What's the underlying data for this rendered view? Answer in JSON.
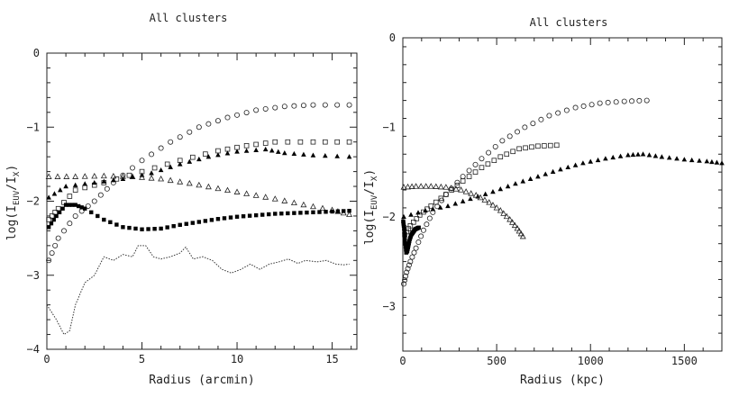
{
  "chart_data": [
    {
      "type": "scatter",
      "title": "All clusters",
      "xlabel": "Radius (arcmin)",
      "ylabel": "log(I_EUV/I_X)",
      "ylabel_main": "log(I",
      "ylabel_sub1": "EUV",
      "ylabel_mid": "/I",
      "ylabel_sub2": "X",
      "ylabel_end": ")",
      "xlim": [
        0,
        16.3
      ],
      "ylim": [
        -4,
        0
      ],
      "xticks": [
        0,
        5,
        10,
        15
      ],
      "yticks": [
        0,
        -1,
        -2,
        -3,
        -4
      ],
      "xtick_labels": [
        "0",
        "5",
        "10",
        "15"
      ],
      "ytick_labels": [
        "0",
        "−1",
        "−2",
        "−3",
        "−4"
      ],
      "series": [
        {
          "name": "open circles",
          "marker": "circle-open",
          "x": [
            0.1,
            0.6,
            1.5,
            2.5,
            3.5,
            5,
            6.5,
            8,
            9.5,
            11,
            12.5,
            14,
            15.9
          ],
          "y": [
            -2.8,
            -2.5,
            -2.2,
            -2.0,
            -1.75,
            -1.45,
            -1.2,
            -1.0,
            -0.87,
            -0.77,
            -0.72,
            -0.7,
            -0.7
          ]
        },
        {
          "name": "open squares",
          "marker": "square-open",
          "x": [
            0.1,
            0.6,
            1.5,
            3,
            5,
            7,
            9,
            10.5,
            12,
            14,
            15.9
          ],
          "y": [
            -2.25,
            -2.1,
            -1.85,
            -1.75,
            -1.6,
            -1.45,
            -1.32,
            -1.25,
            -1.2,
            -1.2,
            -1.2
          ]
        },
        {
          "name": "filled triangles",
          "marker": "triangle-filled",
          "x": [
            0.1,
            1,
            2.5,
            4,
            5.5,
            7,
            8.5,
            10,
            11.5,
            12.5,
            14,
            15.9
          ],
          "y": [
            -1.95,
            -1.8,
            -1.75,
            -1.7,
            -1.62,
            -1.5,
            -1.4,
            -1.33,
            -1.3,
            -1.35,
            -1.38,
            -1.4
          ]
        },
        {
          "name": "open triangles",
          "marker": "triangle-open",
          "x": [
            0.1,
            1.5,
            3,
            4.5,
            6,
            7.5,
            9,
            10.5,
            12,
            13.5,
            15,
            15.9
          ],
          "y": [
            -1.67,
            -1.67,
            -1.66,
            -1.67,
            -1.7,
            -1.76,
            -1.83,
            -1.9,
            -1.97,
            -2.05,
            -2.12,
            -2.18
          ]
        },
        {
          "name": "filled squares",
          "marker": "square-filled",
          "x": [
            0.1,
            0.5,
            1,
            1.5,
            2,
            3,
            4,
            5,
            6,
            7,
            8,
            9,
            10,
            11,
            12,
            13,
            14,
            15,
            15.9
          ],
          "y": [
            -2.35,
            -2.2,
            -2.05,
            -2.05,
            -2.1,
            -2.25,
            -2.35,
            -2.38,
            -2.37,
            -2.32,
            -2.28,
            -2.24,
            -2.21,
            -2.19,
            -2.17,
            -2.16,
            -2.15,
            -2.14,
            -2.13
          ]
        },
        {
          "name": "dotted line",
          "marker": "line-dotted",
          "x": [
            0,
            0.5,
            0.9,
            1.2,
            1.5,
            2,
            2.5,
            3,
            3.5,
            4,
            4.5,
            4.8,
            5.2,
            5.6,
            6,
            6.5,
            7,
            7.3,
            7.7,
            8.2,
            8.7,
            9.2,
            9.7,
            10.2,
            10.7,
            11.2,
            11.7,
            12.2,
            12.7,
            13.2,
            13.6,
            14.2,
            14.7,
            15.2,
            15.6,
            15.9
          ],
          "y": [
            -3.4,
            -3.6,
            -3.8,
            -3.75,
            -3.4,
            -3.1,
            -3.0,
            -2.75,
            -2.8,
            -2.72,
            -2.75,
            -2.6,
            -2.6,
            -2.75,
            -2.78,
            -2.75,
            -2.7,
            -2.62,
            -2.78,
            -2.75,
            -2.8,
            -2.92,
            -2.97,
            -2.92,
            -2.85,
            -2.92,
            -2.85,
            -2.82,
            -2.78,
            -2.84,
            -2.8,
            -2.82,
            -2.8,
            -2.85,
            -2.86,
            -2.85
          ]
        }
      ]
    },
    {
      "type": "scatter",
      "title": "All clusters",
      "xlabel": "Radius (kpc)",
      "ylabel": "log(I_EUV/I_X)",
      "ylabel_main": "log(I",
      "ylabel_sub1": "EUV",
      "ylabel_mid": "/I",
      "ylabel_sub2": "X",
      "ylabel_end": ")",
      "xlim": [
        0,
        1700
      ],
      "ylim": [
        -3.5,
        0
      ],
      "xticks": [
        0,
        500,
        1000,
        1500
      ],
      "yticks": [
        0,
        -1,
        -2,
        -3
      ],
      "xtick_labels": [
        "0",
        "500",
        "1000",
        "1500"
      ],
      "ytick_labels": [
        "0",
        "−1",
        "−2",
        "−3"
      ],
      "series": [
        {
          "name": "open circles",
          "marker": "circle-open",
          "x": [
            5,
            20,
            40,
            70,
            110,
            160,
            230,
            320,
            420,
            530,
            650,
            780,
            920,
            1050,
            1180,
            1300
          ],
          "y": [
            -2.75,
            -2.62,
            -2.5,
            -2.35,
            -2.15,
            -1.95,
            -1.75,
            -1.55,
            -1.35,
            -1.15,
            -1.0,
            -0.87,
            -0.78,
            -0.73,
            -0.71,
            -0.7
          ]
        },
        {
          "name": "open squares",
          "marker": "square-open",
          "x": [
            10,
            40,
            90,
            150,
            230,
            320,
            420,
            520,
            620,
            720,
            820
          ],
          "y": [
            -2.2,
            -2.1,
            -1.98,
            -1.88,
            -1.75,
            -1.6,
            -1.45,
            -1.33,
            -1.24,
            -1.21,
            -1.2
          ]
        },
        {
          "name": "filled triangles",
          "marker": "triangle-filled",
          "x": [
            5,
            120,
            240,
            360,
            480,
            600,
            720,
            840,
            960,
            1080,
            1200,
            1280,
            1380,
            1500,
            1620,
            1700
          ],
          "y": [
            -2.0,
            -1.93,
            -1.88,
            -1.8,
            -1.72,
            -1.63,
            -1.55,
            -1.47,
            -1.4,
            -1.35,
            -1.31,
            -1.3,
            -1.33,
            -1.36,
            -1.38,
            -1.4
          ]
        },
        {
          "name": "open triangles",
          "marker": "triangle-open",
          "x": [
            5,
            70,
            150,
            230,
            310,
            390,
            460,
            520,
            570,
            610,
            640
          ],
          "y": [
            -1.67,
            -1.66,
            -1.66,
            -1.67,
            -1.7,
            -1.76,
            -1.84,
            -1.93,
            -2.03,
            -2.13,
            -2.22
          ]
        },
        {
          "name": "filled squares",
          "marker": "square-filled",
          "x": [
            2,
            5,
            9,
            13,
            18,
            24,
            30,
            37,
            45,
            55,
            65,
            75,
            85
          ],
          "y": [
            -2.05,
            -2.1,
            -2.2,
            -2.3,
            -2.4,
            -2.38,
            -2.32,
            -2.25,
            -2.2,
            -2.17,
            -2.14,
            -2.13,
            -2.12
          ]
        }
      ]
    }
  ]
}
